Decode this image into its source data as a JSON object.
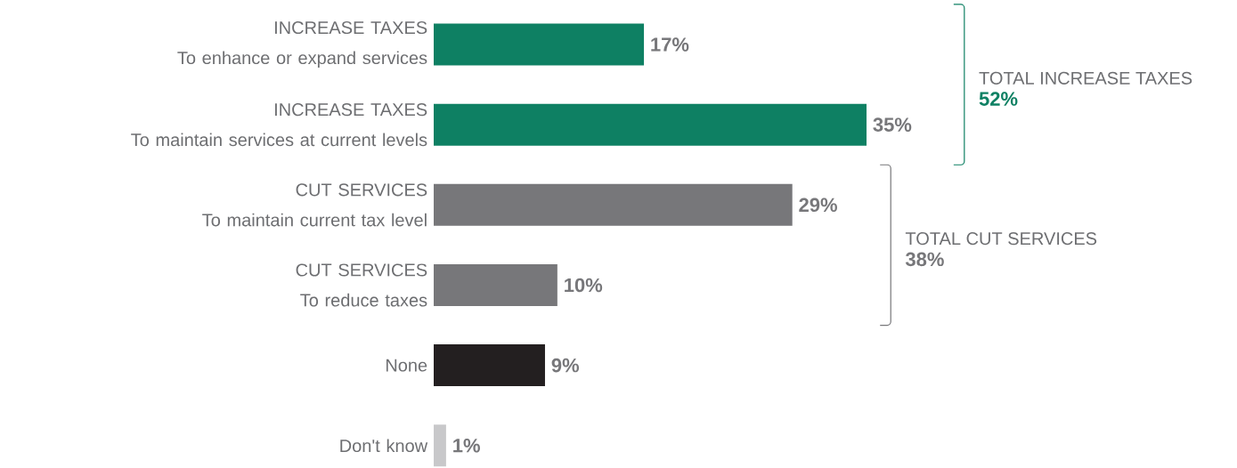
{
  "chart_data": {
    "type": "bar",
    "orientation": "horizontal",
    "categories": [
      "INCREASE TAXES\nTo enhance or expand services",
      "INCREASE TAXES\nTo maintain services at current levels",
      "CUT SERVICES\nTo maintain current tax level",
      "CUT SERVICES\nTo reduce taxes",
      "None",
      "Don't know"
    ],
    "values": [
      17,
      35,
      29,
      10,
      9,
      1
    ],
    "colors": [
      "#0e8063",
      "#0e8063",
      "#77777a",
      "#77777a",
      "#231f20",
      "#c8c8ca"
    ],
    "value_labels": [
      "17%",
      "35%",
      "29%",
      "10%",
      "9%",
      "1%"
    ],
    "annotations": [
      "TOTAL INCREASE TAXES",
      "52%",
      "TOTAL CUT SERVICES",
      "38%"
    ]
  }
}
